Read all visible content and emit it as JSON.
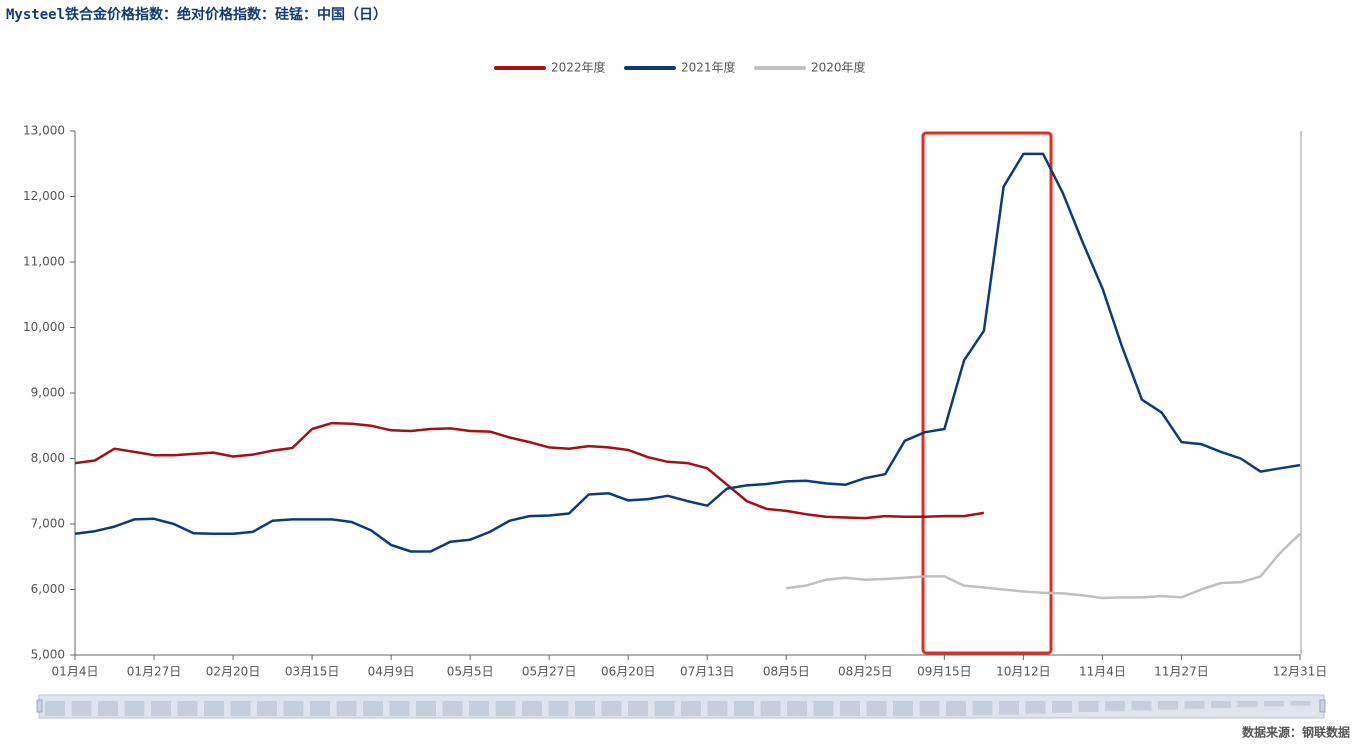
{
  "chart_data": {
    "type": "line",
    "title": "Mysteel铁合金价格指数：绝对价格指数：硅锰：中国（日）",
    "source": "数据来源：钢联数据",
    "legend": "top",
    "grid": false,
    "categories": [
      "01月4日",
      null,
      null,
      null,
      "01月27日",
      null,
      null,
      null,
      "02月20日",
      null,
      null,
      null,
      "03月15日",
      null,
      null,
      null,
      "04月9日",
      null,
      null,
      null,
      "05月5日",
      null,
      null,
      null,
      "05月27日",
      null,
      null,
      null,
      "06月20日",
      null,
      null,
      null,
      "07月13日",
      null,
      null,
      null,
      "08月5日",
      null,
      null,
      null,
      "08月25日",
      null,
      null,
      null,
      "09月15日",
      null,
      null,
      null,
      "10月12日",
      null,
      null,
      null,
      "11月4日",
      null,
      null,
      null,
      "11月27日",
      null,
      null,
      null,
      null,
      null,
      "12月31日"
    ],
    "ylim": [
      5000,
      13000
    ],
    "yticks": [
      {
        "value": 5000,
        "label": "5,000"
      },
      {
        "value": 6000,
        "label": "6,000"
      },
      {
        "value": 7000,
        "label": "7,000"
      },
      {
        "value": 8000,
        "label": "8,000"
      },
      {
        "value": 9000,
        "label": "9,000"
      },
      {
        "value": 10000,
        "label": "10,000"
      },
      {
        "value": 11000,
        "label": "11,000"
      },
      {
        "value": 12000,
        "label": "12,000"
      },
      {
        "value": 13000,
        "label": "13,000"
      }
    ],
    "series": [
      {
        "name": "2022年度",
        "color": "#a50f15",
        "values": [
          7930,
          7970,
          8150,
          8100,
          8050,
          8050,
          8070,
          8090,
          8030,
          8060,
          8120,
          8160,
          8450,
          8540,
          8530,
          8500,
          8430,
          8420,
          8450,
          8460,
          8420,
          8410,
          8320,
          8250,
          8170,
          8150,
          8190,
          8170,
          8130,
          8020,
          7950,
          7930,
          7850,
          7600,
          7350,
          7230,
          7200,
          7150,
          7110,
          7100,
          7090,
          7120,
          7110,
          7110,
          7120,
          7120,
          7170,
          null,
          null,
          null,
          null,
          null,
          null,
          null,
          null,
          null,
          null,
          null,
          null,
          null,
          null,
          null,
          null
        ]
      },
      {
        "name": "2021年度",
        "color": "#0b3b7c",
        "values": [
          6850,
          6890,
          6960,
          7070,
          7080,
          7000,
          6860,
          6850,
          6850,
          6880,
          7050,
          7070,
          7070,
          7070,
          7030,
          6900,
          6680,
          6580,
          6580,
          6730,
          6760,
          6880,
          7050,
          7120,
          7130,
          7160,
          7450,
          7470,
          7360,
          7380,
          7430,
          7350,
          7280,
          7540,
          7590,
          7610,
          7650,
          7660,
          7620,
          7600,
          7700,
          7760,
          8270,
          8400,
          8450,
          9500,
          9950,
          12150,
          12650,
          12650,
          12050,
          11300,
          10600,
          9700,
          8900,
          8700,
          8250,
          8220,
          8100,
          8000,
          7800,
          7850,
          7900
        ]
      },
      {
        "name": "2020年度",
        "color": "#c0c0c0",
        "values": [
          null,
          null,
          null,
          null,
          null,
          null,
          null,
          null,
          null,
          null,
          null,
          null,
          null,
          null,
          null,
          null,
          null,
          null,
          null,
          null,
          null,
          null,
          null,
          null,
          null,
          null,
          null,
          null,
          null,
          null,
          null,
          null,
          null,
          null,
          null,
          null,
          6020,
          6060,
          6150,
          6180,
          6150,
          6160,
          6180,
          6200,
          6200,
          6060,
          6030,
          6000,
          5970,
          5950,
          5940,
          5910,
          5870,
          5880,
          5880,
          5900,
          5880,
          6000,
          6100,
          6110,
          6200,
          6560,
          6850
        ]
      }
    ]
  }
}
